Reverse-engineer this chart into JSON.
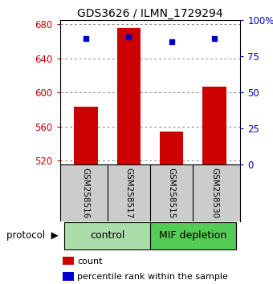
{
  "title": "GDS3626 / ILMN_1729294",
  "samples": [
    "GSM258516",
    "GSM258517",
    "GSM258515",
    "GSM258530"
  ],
  "bar_values": [
    583,
    675,
    554,
    607
  ],
  "percentile_values": [
    87,
    88,
    85,
    87
  ],
  "ylim_left": [
    515,
    685
  ],
  "yticks_left": [
    520,
    560,
    600,
    640,
    680
  ],
  "ylim_right": [
    0,
    100
  ],
  "yticks_right": [
    0,
    25,
    50,
    75,
    100
  ],
  "bar_color": "#cc0000",
  "percentile_color": "#0000cc",
  "bar_bottom": 515,
  "groups": [
    {
      "label": "control",
      "color": "#aaddaa"
    },
    {
      "label": "MIF depletion",
      "color": "#55cc55"
    }
  ],
  "protocol_label": "protocol",
  "legend_items": [
    {
      "label": "count",
      "color": "#cc0000"
    },
    {
      "label": "percentile rank within the sample",
      "color": "#0000cc"
    }
  ],
  "background_color": "#ffffff",
  "tick_label_color_left": "#cc0000",
  "tick_label_color_right": "#0000cc",
  "xlabel_area_color": "#cccccc",
  "grid_color": "#888888"
}
